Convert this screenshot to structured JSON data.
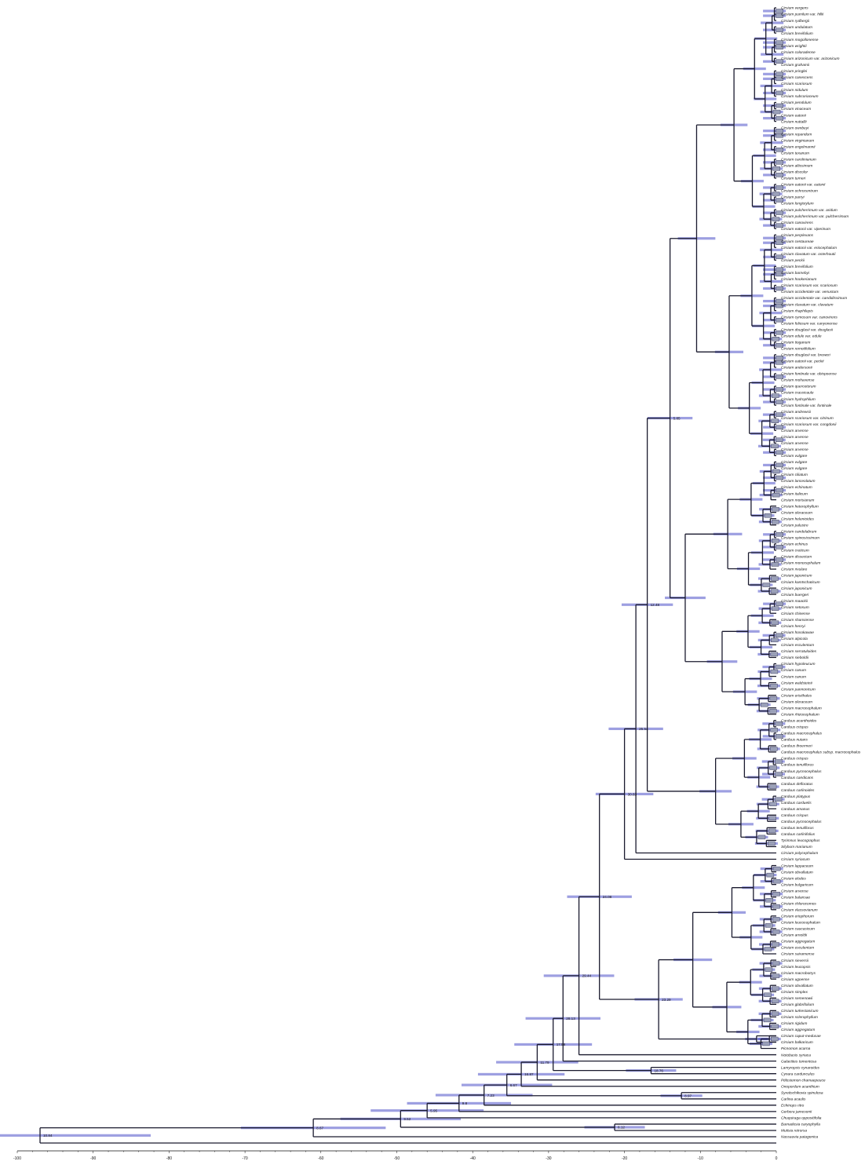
{
  "chart_data": {
    "type": "dendrogram",
    "orientation": "root-left",
    "x_axis": {
      "range": [
        -100,
        0
      ],
      "ticks": [
        -100,
        -90,
        -80,
        -70,
        -60,
        -50,
        -40,
        -30,
        -20,
        -10,
        0
      ],
      "tick_labels": [
        "-100",
        "-90",
        "-80",
        "-70",
        "-60",
        "-50",
        "-40",
        "-30",
        "-20",
        "-10",
        "0"
      ]
    },
    "colors": {
      "branch": "#1a1a2e",
      "ci_bar": "#4c50c8",
      "age_box": "#9aa0b8"
    },
    "tips": [
      "Cirsium vergens",
      "Cirsium pumilum var. hillii",
      "Cirsium rydbergii",
      "Cirsium undulatum",
      "Cirsium brevifolium",
      "Cirsium mogollonense",
      "Cirsium wrightii",
      "Cirsium coloradense",
      "Cirsium arizonicum var. arizonicum",
      "Cirsium grahamii",
      "Cirsium pringlei",
      "Cirsium canescens",
      "Cirsium scariosum",
      "Cirsium nidulum",
      "Cirsium subcoriaceum",
      "Cirsium pendulum",
      "Cirsium vinaceum",
      "Cirsium eatonii",
      "Cirsium nuttallii",
      "Cirsium ownbeyi",
      "Cirsium repandum",
      "Cirsium virginianum",
      "Cirsium engelmannii",
      "Cirsium texanum",
      "Cirsium carolinianum",
      "Cirsium altissimum",
      "Cirsium discolor",
      "Cirsium turneri",
      "Cirsium eatonii var. eatonii",
      "Cirsium ochrocentrum",
      "Cirsium parryi",
      "Cirsium longistylum",
      "Cirsium pulcherrimum var. aridum",
      "Cirsium pulcherrimum var. pulcherrimum",
      "Cirsium canovirens",
      "Cirsium eatonii var. viperinum",
      "Cirsium perplexans",
      "Cirsium centaureae",
      "Cirsium eatonii var. eriocephalum",
      "Cirsium clavatum var. osterhoutii",
      "Cirsium peckii",
      "Cirsium brevifolium",
      "Cirsium barnebyi",
      "Cirsium hookerianum",
      "Cirsium scariosum var. scariosum",
      "Cirsium occidentale var. venustum",
      "Cirsium occidentale var. candidissimum",
      "Cirsium clavatum var. clavatum",
      "Cirsium rhaphilepis",
      "Cirsium cymosum var. canovirens",
      "Cirsium foliosum var. canyonense",
      "Cirsium douglasii var. douglasii",
      "Cirsium edule var. edule",
      "Cirsium tioganum",
      "Cirsium remotifolium",
      "Cirsium douglasii var. breweri",
      "Cirsium eatonii var. peckii",
      "Cirsium andersonii",
      "Cirsium fontinale var. obispoense",
      "Cirsium mohavense",
      "Cirsium quercetorum",
      "Cirsium crassicaule",
      "Cirsium hydrophilum",
      "Cirsium fontinale var. fontinale",
      "Cirsium andrewsii",
      "Cirsium scariosum var. citrinum",
      "Cirsium scariosum var. congdonii",
      "Cirsium arvense",
      "Cirsium arvense",
      "Cirsium arvense",
      "Cirsium arvense",
      "Cirsium vulgare",
      "Cirsium vulgare",
      "Cirsium vulgare",
      "Cirsium ciliatum",
      "Cirsium lanceolatum",
      "Cirsium echinatum",
      "Cirsium italicum",
      "Cirsium morisianum",
      "Cirsium heterophyllum",
      "Cirsium oleraceum",
      "Cirsium helenioides",
      "Cirsium palustre",
      "Cirsium candelabrum",
      "Cirsium spinosissimum",
      "Cirsium echinus",
      "Cirsium creticum",
      "Cirsium dissectum",
      "Cirsium monocephalum",
      "Cirsium rivulare",
      "Cirsium japonicum",
      "Cirsium kamtschaticum",
      "Cirsium japonicum",
      "Cirsium buergeri",
      "Cirsium maackii",
      "Cirsium setosum",
      "Cirsium chinense",
      "Cirsium shansiense",
      "Cirsium henryi",
      "Cirsium hosokawae",
      "Cirsium alpicola",
      "Cirsium esculentum",
      "Cirsium serratuloides",
      "Cirsium sieboldii",
      "Cirsium hypoleucum",
      "Cirsium canum",
      "Cirsium canum",
      "Cirsium waldsteinii",
      "Cirsium pannonicum",
      "Cirsium erisithales",
      "Cirsium oleraceum",
      "Cirsium macrocephalum",
      "Cirsium rhizocephalum",
      "Carduus acanthoides",
      "Carduus crispus",
      "Carduus macrocephalus",
      "Carduus nutans",
      "Carduus thoermeri",
      "Carduus macrocephalus subsp. macrocephalus",
      "Carduus crispus",
      "Carduus tenuiflorus",
      "Carduus pycnocephalus",
      "Carduus candicans",
      "Carduus defloratus",
      "Carduus carlinoides",
      "Carduus platypus",
      "Carduus carduelis",
      "Carduus amanus",
      "Carduus crispus",
      "Carduus pycnocephalus",
      "Carduus tenuiflorus",
      "Carduus carlinifolius",
      "Tyrimnus leucographus",
      "Silybum marianum",
      "Cirsium polycephalum",
      "Cirsium syriacum",
      "Cirsium lappaceum",
      "Cirsium obvallatum",
      "Cirsium elodes",
      "Cirsium bulgaricum",
      "Cirsium arvense",
      "Cirsium balansae",
      "Cirsium chlorocomos",
      "Cirsium vlassovianum",
      "Cirsium eriophorum",
      "Cirsium leucocephalum",
      "Cirsium caucasicum",
      "Cirsium arnoldii",
      "Cirsium aggregatum",
      "Cirsium esculentum",
      "Cirsium sairamense",
      "Cirsium sieversii",
      "Cirsium leucopsis",
      "Cirsium macrobotrys",
      "Cirsium ugoense",
      "Cirsium obvallatum",
      "Cirsium simplex",
      "Cirsium semenowii",
      "Cirsium glabrifolium",
      "Cirsium turkestanicum",
      "Cirsium sclerophyllum",
      "Cirsium rigidum",
      "Cirsium aggregatum",
      "Cirsium caput-medusae",
      "Cirsium balkaricum",
      "Picnomon acarna",
      "Notobasis syriaca",
      "Galactites tomentosa",
      "Lamyropsis cynaroides",
      "Cynara cardunculus",
      "Ptilostemon chamaepeuce",
      "Onopordum acanthium",
      "Syreitschikovia spinulosa",
      "Carlina acaulis",
      "Echinops ritro",
      "Gerbera jamesonii",
      "Chuquiraga oppositifolia",
      "Barnadesia caryophylla",
      "Mutisia retrorsa",
      "Nassauvia patagonica"
    ],
    "internal_node_ages": [
      "5.85",
      "12.48",
      "25.54",
      "30.63",
      "23.29",
      "24.08",
      "29.44",
      "28.13",
      "18.76",
      "17.58",
      "11.79",
      "16.87",
      "8.97",
      "6.67",
      "7.23",
      "9.8",
      "5.95",
      "6.12",
      "9.52",
      "8.67",
      "10.84",
      "14.28",
      "19.42",
      "33.6",
      "31.77",
      "38.47",
      "41.76",
      "37.3"
    ]
  }
}
